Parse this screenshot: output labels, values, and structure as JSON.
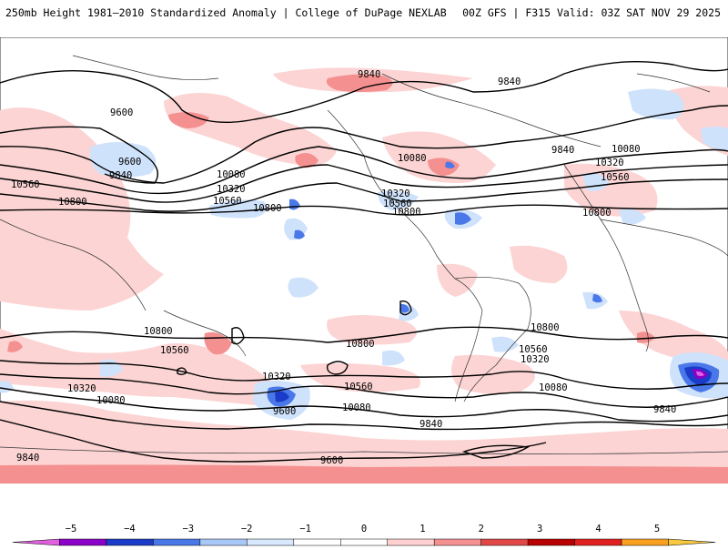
{
  "header": {
    "title_left": "250mb Height 1981–2010 Standardized Anomaly | College of DuPage NEXLAB",
    "title_right": "00Z GFS | F315 Valid: 03Z SAT NOV 29 2025"
  },
  "map": {
    "contour_labels": [
      {
        "text": "9840"
      },
      {
        "text": "9840"
      },
      {
        "text": "9600"
      },
      {
        "text": "9600"
      },
      {
        "text": "9840"
      },
      {
        "text": "10080"
      },
      {
        "text": "10320"
      },
      {
        "text": "10560"
      },
      {
        "text": "10560"
      },
      {
        "text": "10800"
      },
      {
        "text": "10800"
      },
      {
        "text": "10080"
      },
      {
        "text": "10320"
      },
      {
        "text": "10560"
      },
      {
        "text": "10800"
      },
      {
        "text": "9840"
      },
      {
        "text": "10080"
      },
      {
        "text": "10320"
      },
      {
        "text": "10560"
      },
      {
        "text": "10800"
      },
      {
        "text": "10800"
      },
      {
        "text": "10560"
      },
      {
        "text": "10800"
      },
      {
        "text": "10320"
      },
      {
        "text": "10560"
      },
      {
        "text": "10080"
      },
      {
        "text": "10320"
      },
      {
        "text": "9600"
      },
      {
        "text": "10080"
      },
      {
        "text": "9840"
      },
      {
        "text": "10800"
      },
      {
        "text": "10560"
      },
      {
        "text": "10320"
      },
      {
        "text": "10080"
      },
      {
        "text": "9840"
      },
      {
        "text": "9600"
      },
      {
        "text": "9840"
      }
    ]
  },
  "colorbar": {
    "ticks": [
      "−5",
      "−4",
      "−3",
      "−2",
      "−1",
      "0",
      "1",
      "2",
      "3",
      "4",
      "5"
    ],
    "colors": [
      "#e060e0",
      "#8a00c8",
      "#1a3cc8",
      "#4a78e8",
      "#a8c8f8",
      "#d8e8ff",
      "#ffffff",
      "#ffffff",
      "#ffd0d0",
      "#f49090",
      "#e04848",
      "#b80000",
      "#e02020",
      "#f8a020",
      "#f8c840"
    ]
  }
}
